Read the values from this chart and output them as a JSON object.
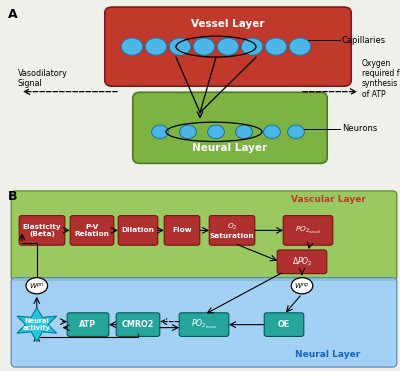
{
  "fig_width": 4.0,
  "fig_height": 3.71,
  "bg_color": "#f0f0eb",
  "panel_A_label": "A",
  "panel_B_label": "B",
  "vessel_layer_color": "#c0392b",
  "vessel_layer_text": "Vessel Layer",
  "neural_layer_color_A": "#7cb342",
  "neural_layer_text_A": "Neural Layer",
  "capillaries_text": "Capillaries",
  "neurons_text": "Neurons",
  "vasodilatory_text": "Vasodilatory\nSignal",
  "oxygen_text": "Oxygen\nrequired for\nsynthesis\nof ATP",
  "vascular_layer_bg": "#8bc34a",
  "neural_layer_bg": "#90caf9",
  "vascular_layer_label": "Vascular Layer",
  "neural_layer_label": "Neural Layer",
  "red_box_color": "#b03030",
  "teal_box_color": "#26a69a",
  "circle_color": "#ffffff",
  "delta_po2_text": "$\\Delta PO_2$",
  "neural_star_text": "Neural\nactivity",
  "w_pn_text": "$W^{pn}$",
  "w_np_text": "$W^{np}$"
}
